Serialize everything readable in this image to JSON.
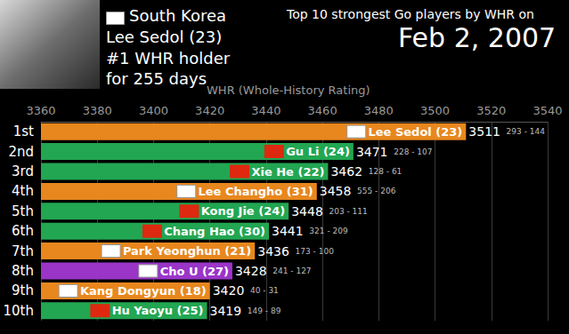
{
  "chart_data": {
    "type": "bar",
    "orientation": "horizontal",
    "title": "Top 10 strongest Go players by WHR on",
    "subtitle": "Feb 2, 2007",
    "x_label": "WHR (Whole-History Rating)",
    "annotations": [
      "South Korea",
      "Lee Sedol (23)",
      "#1 WHR holder",
      "for 255 days"
    ],
    "categories": [
      "1st",
      "2nd",
      "3rd",
      "4th",
      "5th",
      "6th",
      "7th",
      "8th",
      "9th",
      "10th"
    ],
    "players": [
      "Lee Sedol (23)",
      "Gu Li (24)",
      "Xie He (22)",
      "Lee Changho (31)",
      "Kong Jie (24)",
      "Chang Hao (30)",
      "Park Yeonghun (21)",
      "Cho U (27)",
      "Kang Dongyun (18)",
      "Hu Yaoyu (25)"
    ],
    "values": [
      3511,
      3471,
      3462,
      3458,
      3448,
      3441,
      3436,
      3428,
      3420,
      3419
    ],
    "records": [
      "293 - 144",
      "228 - 107",
      "128 - 61",
      "555 - 206",
      "203 - 111",
      "321 - 209",
      "173 - 100",
      "241 - 127",
      "40 - 31",
      "149 - 89"
    ],
    "colors": [
      "#e8871e",
      "#22a652",
      "#22a652",
      "#e8871e",
      "#22a652",
      "#22a652",
      "#e8871e",
      "#9a35c8",
      "#e8871e",
      "#22a652"
    ],
    "xlim": [
      3360,
      3540
    ],
    "xticks": [
      3360,
      3380,
      3400,
      3420,
      3440,
      3460,
      3480,
      3500,
      3520,
      3540
    ],
    "grid": true,
    "data_labels": true
  }
}
